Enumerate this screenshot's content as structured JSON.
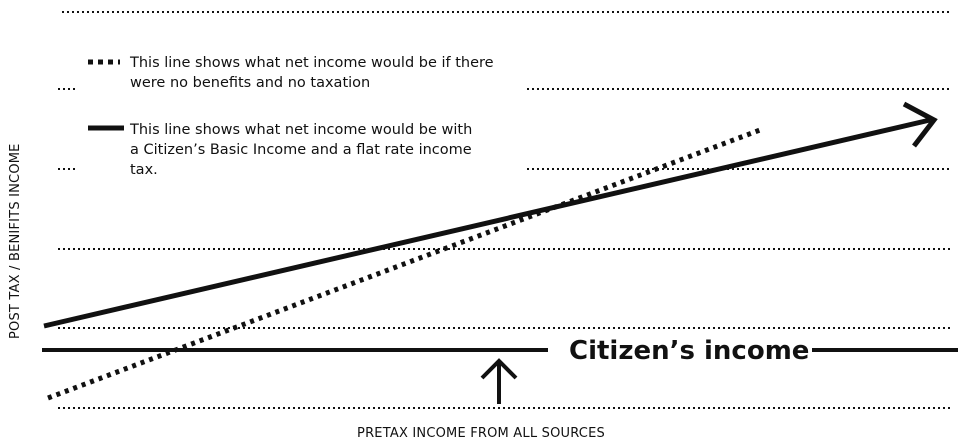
{
  "axes": {
    "y_label": "POST TAX / BENIFITS INCOME",
    "x_label": "PRETAX INCOME FROM ALL SOURCES"
  },
  "legend": [
    {
      "style": "dotted",
      "text": "This line shows what net income would be if there were no benefits and no taxation"
    },
    {
      "style": "solid",
      "text": "This line shows what net income would be with a Citizen’s Basic Income and a flat rate income tax."
    }
  ],
  "baseline_label": "Citizen’s income",
  "colors": {
    "ink": "#111111",
    "background": "#ffffff"
  },
  "icons": {
    "baseline_arrow": "up-arrow-icon",
    "solid_line_end": "arrow-head-icon"
  }
}
